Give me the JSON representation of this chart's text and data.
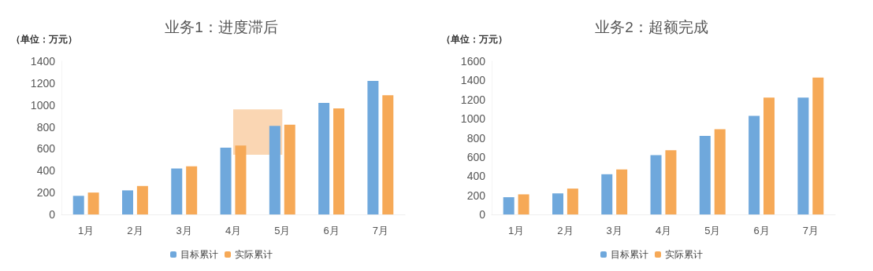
{
  "chart_data": [
    {
      "type": "bar",
      "title": "业务1：进度滞后",
      "ylabel": "（单位：万元）",
      "categories": [
        "1月",
        "2月",
        "3月",
        "4月",
        "5月",
        "6月",
        "7月"
      ],
      "series": [
        {
          "name": "目标累计",
          "color": "#6fa8dc",
          "values": [
            170,
            220,
            420,
            610,
            810,
            1020,
            1220
          ]
        },
        {
          "name": "实际累计",
          "color": "#f6a957",
          "values": [
            200,
            260,
            440,
            630,
            820,
            970,
            1090
          ]
        }
      ],
      "ylim": [
        0,
        1400
      ],
      "yticks": [
        0,
        200,
        400,
        600,
        800,
        1000,
        1200,
        1400
      ],
      "grid": false,
      "legend": "bottom",
      "bands": [
        {
          "axis": "y",
          "from": 545,
          "to": 960,
          "color": "#f8c89a"
        }
      ]
    },
    {
      "type": "bar",
      "title": "业务2：超额完成",
      "ylabel": "（单位：万元）",
      "categories": [
        "1月",
        "2月",
        "3月",
        "4月",
        "5月",
        "6月",
        "7月"
      ],
      "series": [
        {
          "name": "目标累计",
          "color": "#6fa8dc",
          "values": [
            180,
            220,
            420,
            620,
            820,
            1030,
            1220
          ]
        },
        {
          "name": "实际累计",
          "color": "#f6a957",
          "values": [
            210,
            270,
            470,
            670,
            890,
            1220,
            1430
          ]
        }
      ],
      "ylim": [
        0,
        1600
      ],
      "yticks": [
        0,
        200,
        400,
        600,
        800,
        1000,
        1200,
        1400,
        1600
      ],
      "grid": false,
      "legend": "bottom"
    }
  ]
}
